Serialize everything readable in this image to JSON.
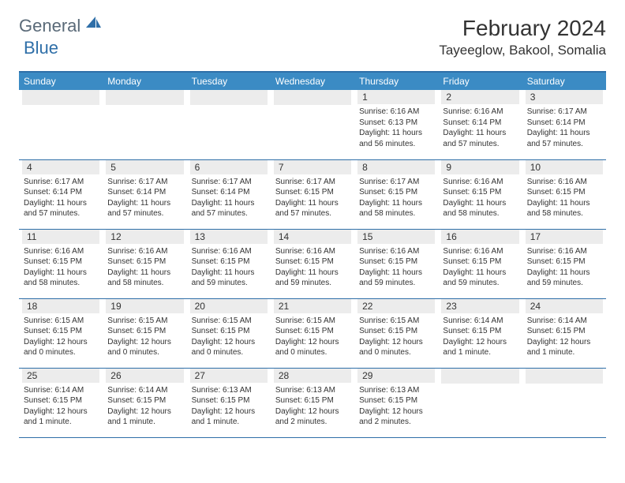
{
  "brand": {
    "general": "General",
    "blue": "Blue"
  },
  "title": "February 2024",
  "location": "Tayeeglow, Bakool, Somalia",
  "weekdays": [
    "Sunday",
    "Monday",
    "Tuesday",
    "Wednesday",
    "Thursday",
    "Friday",
    "Saturday"
  ],
  "colors": {
    "header_bg": "#3b8bc4",
    "accent": "#2f6fa8",
    "daynum_bg": "#ececec",
    "text": "#333333",
    "logo_general": "#5a6a78",
    "logo_blue": "#2f6fa8"
  },
  "weeks": [
    [
      {
        "n": "",
        "sr": "",
        "ss": "",
        "dl": ""
      },
      {
        "n": "",
        "sr": "",
        "ss": "",
        "dl": ""
      },
      {
        "n": "",
        "sr": "",
        "ss": "",
        "dl": ""
      },
      {
        "n": "",
        "sr": "",
        "ss": "",
        "dl": ""
      },
      {
        "n": "1",
        "sr": "Sunrise: 6:16 AM",
        "ss": "Sunset: 6:13 PM",
        "dl": "Daylight: 11 hours and 56 minutes."
      },
      {
        "n": "2",
        "sr": "Sunrise: 6:16 AM",
        "ss": "Sunset: 6:14 PM",
        "dl": "Daylight: 11 hours and 57 minutes."
      },
      {
        "n": "3",
        "sr": "Sunrise: 6:17 AM",
        "ss": "Sunset: 6:14 PM",
        "dl": "Daylight: 11 hours and 57 minutes."
      }
    ],
    [
      {
        "n": "4",
        "sr": "Sunrise: 6:17 AM",
        "ss": "Sunset: 6:14 PM",
        "dl": "Daylight: 11 hours and 57 minutes."
      },
      {
        "n": "5",
        "sr": "Sunrise: 6:17 AM",
        "ss": "Sunset: 6:14 PM",
        "dl": "Daylight: 11 hours and 57 minutes."
      },
      {
        "n": "6",
        "sr": "Sunrise: 6:17 AM",
        "ss": "Sunset: 6:14 PM",
        "dl": "Daylight: 11 hours and 57 minutes."
      },
      {
        "n": "7",
        "sr": "Sunrise: 6:17 AM",
        "ss": "Sunset: 6:15 PM",
        "dl": "Daylight: 11 hours and 57 minutes."
      },
      {
        "n": "8",
        "sr": "Sunrise: 6:17 AM",
        "ss": "Sunset: 6:15 PM",
        "dl": "Daylight: 11 hours and 58 minutes."
      },
      {
        "n": "9",
        "sr": "Sunrise: 6:16 AM",
        "ss": "Sunset: 6:15 PM",
        "dl": "Daylight: 11 hours and 58 minutes."
      },
      {
        "n": "10",
        "sr": "Sunrise: 6:16 AM",
        "ss": "Sunset: 6:15 PM",
        "dl": "Daylight: 11 hours and 58 minutes."
      }
    ],
    [
      {
        "n": "11",
        "sr": "Sunrise: 6:16 AM",
        "ss": "Sunset: 6:15 PM",
        "dl": "Daylight: 11 hours and 58 minutes."
      },
      {
        "n": "12",
        "sr": "Sunrise: 6:16 AM",
        "ss": "Sunset: 6:15 PM",
        "dl": "Daylight: 11 hours and 58 minutes."
      },
      {
        "n": "13",
        "sr": "Sunrise: 6:16 AM",
        "ss": "Sunset: 6:15 PM",
        "dl": "Daylight: 11 hours and 59 minutes."
      },
      {
        "n": "14",
        "sr": "Sunrise: 6:16 AM",
        "ss": "Sunset: 6:15 PM",
        "dl": "Daylight: 11 hours and 59 minutes."
      },
      {
        "n": "15",
        "sr": "Sunrise: 6:16 AM",
        "ss": "Sunset: 6:15 PM",
        "dl": "Daylight: 11 hours and 59 minutes."
      },
      {
        "n": "16",
        "sr": "Sunrise: 6:16 AM",
        "ss": "Sunset: 6:15 PM",
        "dl": "Daylight: 11 hours and 59 minutes."
      },
      {
        "n": "17",
        "sr": "Sunrise: 6:16 AM",
        "ss": "Sunset: 6:15 PM",
        "dl": "Daylight: 11 hours and 59 minutes."
      }
    ],
    [
      {
        "n": "18",
        "sr": "Sunrise: 6:15 AM",
        "ss": "Sunset: 6:15 PM",
        "dl": "Daylight: 12 hours and 0 minutes."
      },
      {
        "n": "19",
        "sr": "Sunrise: 6:15 AM",
        "ss": "Sunset: 6:15 PM",
        "dl": "Daylight: 12 hours and 0 minutes."
      },
      {
        "n": "20",
        "sr": "Sunrise: 6:15 AM",
        "ss": "Sunset: 6:15 PM",
        "dl": "Daylight: 12 hours and 0 minutes."
      },
      {
        "n": "21",
        "sr": "Sunrise: 6:15 AM",
        "ss": "Sunset: 6:15 PM",
        "dl": "Daylight: 12 hours and 0 minutes."
      },
      {
        "n": "22",
        "sr": "Sunrise: 6:15 AM",
        "ss": "Sunset: 6:15 PM",
        "dl": "Daylight: 12 hours and 0 minutes."
      },
      {
        "n": "23",
        "sr": "Sunrise: 6:14 AM",
        "ss": "Sunset: 6:15 PM",
        "dl": "Daylight: 12 hours and 1 minute."
      },
      {
        "n": "24",
        "sr": "Sunrise: 6:14 AM",
        "ss": "Sunset: 6:15 PM",
        "dl": "Daylight: 12 hours and 1 minute."
      }
    ],
    [
      {
        "n": "25",
        "sr": "Sunrise: 6:14 AM",
        "ss": "Sunset: 6:15 PM",
        "dl": "Daylight: 12 hours and 1 minute."
      },
      {
        "n": "26",
        "sr": "Sunrise: 6:14 AM",
        "ss": "Sunset: 6:15 PM",
        "dl": "Daylight: 12 hours and 1 minute."
      },
      {
        "n": "27",
        "sr": "Sunrise: 6:13 AM",
        "ss": "Sunset: 6:15 PM",
        "dl": "Daylight: 12 hours and 1 minute."
      },
      {
        "n": "28",
        "sr": "Sunrise: 6:13 AM",
        "ss": "Sunset: 6:15 PM",
        "dl": "Daylight: 12 hours and 2 minutes."
      },
      {
        "n": "29",
        "sr": "Sunrise: 6:13 AM",
        "ss": "Sunset: 6:15 PM",
        "dl": "Daylight: 12 hours and 2 minutes."
      },
      {
        "n": "",
        "sr": "",
        "ss": "",
        "dl": ""
      },
      {
        "n": "",
        "sr": "",
        "ss": "",
        "dl": ""
      }
    ]
  ]
}
